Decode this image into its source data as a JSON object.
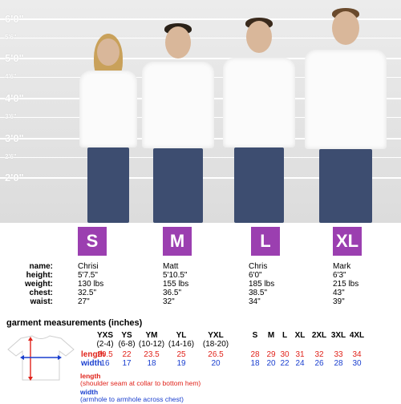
{
  "height_scale": [
    "6'0\"",
    "5'6\"",
    "5'0\"",
    "4'6\"",
    "4'0\"",
    "3'6\"",
    "3'0\"",
    "2'6\"",
    "2'0\""
  ],
  "sizes": [
    {
      "size": "S",
      "name": "Chrisi",
      "height": "5'7.5\"",
      "weight": "130 lbs",
      "chest": "32.5\"",
      "waist": "27\""
    },
    {
      "size": "M",
      "name": "Matt",
      "height": "5'10.5\"",
      "weight": "155 lbs",
      "chest": "36.5\"",
      "waist": "32\""
    },
    {
      "size": "L",
      "name": "Chris",
      "height": "6'0\"",
      "weight": "185 lbs",
      "chest": "38.5\"",
      "waist": "34\""
    },
    {
      "size": "XL",
      "name": "Mark",
      "height": "6'3\"",
      "weight": "215 lbs",
      "chest": "43\"",
      "waist": "39\""
    }
  ],
  "measure_labels": {
    "name": "name:",
    "height": "height:",
    "weight": "weight:",
    "chest": "chest:",
    "waist": "waist:"
  },
  "garment": {
    "title": "garment measurements (inches)",
    "youth_sizes": [
      {
        "label": "YXS",
        "range": "(2-4)",
        "length": "20.5",
        "width": "16"
      },
      {
        "label": "YS",
        "range": "(6-8)",
        "length": "22",
        "width": "17"
      },
      {
        "label": "YM",
        "range": "(10-12)",
        "length": "23.5",
        "width": "18"
      },
      {
        "label": "YL",
        "range": "(14-16)",
        "length": "25",
        "width": "19"
      },
      {
        "label": "YXL",
        "range": "(18-20)",
        "length": "26.5",
        "width": "20"
      }
    ],
    "adult_sizes": [
      {
        "label": "S",
        "length": "28",
        "width": "18"
      },
      {
        "label": "M",
        "length": "29",
        "width": "20"
      },
      {
        "label": "L",
        "length": "30",
        "width": "22"
      },
      {
        "label": "XL",
        "length": "31",
        "width": "24"
      },
      {
        "label": "2XL",
        "length": "32",
        "width": "26"
      },
      {
        "label": "3XL",
        "length": "33",
        "width": "28"
      },
      {
        "label": "4XL",
        "length": "34",
        "width": "30"
      }
    ],
    "row_labels": {
      "length": "length",
      "width": "width"
    },
    "notes": {
      "length_title": "length",
      "length_desc": "(shoulder seam at collar to bottom hem)",
      "width_title": "width",
      "width_desc": "(armhole to armhole across chest)"
    }
  },
  "colors": {
    "size_box": "#9b3fb0",
    "length": "#e0231b",
    "width": "#1a3fcf"
  }
}
